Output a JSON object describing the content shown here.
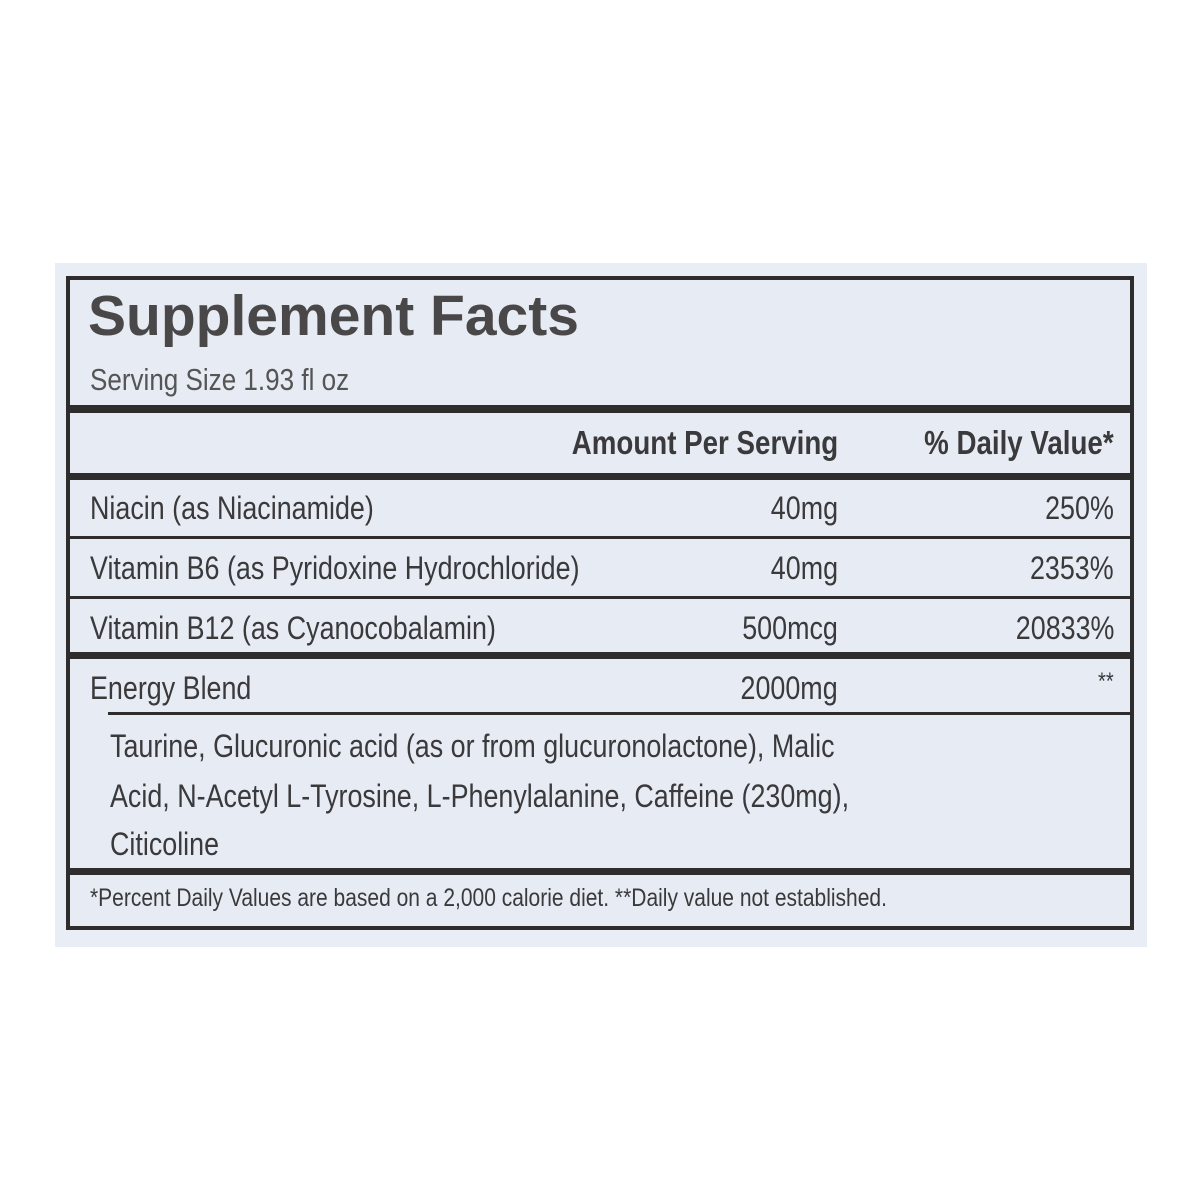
{
  "title": "Supplement Facts",
  "serving_size": "Serving Size 1.93 fl oz",
  "header": {
    "amount": "Amount Per Serving",
    "daily_value": "% Daily Value*"
  },
  "nutrients": [
    {
      "name": "Niacin (as Niacinamide)",
      "amount": "40mg",
      "dv": "250%"
    },
    {
      "name": "Vitamin B6 (as Pyridoxine Hydrochloride)",
      "amount": "40mg",
      "dv": "2353%"
    },
    {
      "name": "Vitamin B12 (as Cyanocobalamin)",
      "amount": "500mcg",
      "dv": "20833%"
    }
  ],
  "blend": {
    "name": "Energy Blend",
    "amount": "2000mg",
    "dv": "**",
    "ingredients": [
      "Taurine, Glucuronic acid (as or from glucuronolactone), Malic",
      "Acid, N-Acetyl L-Tyrosine, L-Phenylalanine, Caffeine (230mg),",
      "Citicoline"
    ]
  },
  "footnote": "*Percent Daily Values are based on a 2,000 calorie diet. **Daily value not established.",
  "colors": {
    "ink": "#2e2c2d",
    "text": "#3a3a3c",
    "background": "#e7ebf3"
  }
}
